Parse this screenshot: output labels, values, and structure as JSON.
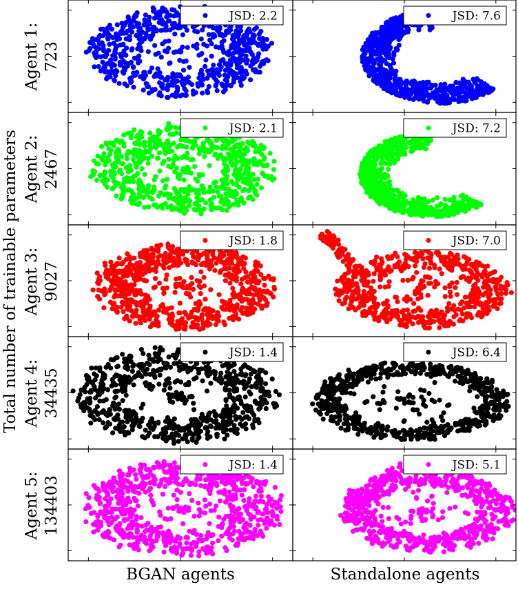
{
  "figure": {
    "y_title": "Total number of trainable parameters",
    "col_titles": [
      "BGAN agents",
      "Standalone agents"
    ]
  },
  "rows": [
    {
      "label_line1": "Agent 1:",
      "label_line2": "723",
      "color": "#0000ff"
    },
    {
      "label_line1": "Agent 2:",
      "label_line2": "2467",
      "color": "#00ff00"
    },
    {
      "label_line1": "Agent 3:",
      "label_line2": "9027",
      "color": "#ff0000"
    },
    {
      "label_line1": "Agent 4:",
      "label_line2": "34435",
      "color": "#000000"
    },
    {
      "label_line1": "Agent 5:",
      "label_line2": "134403",
      "color": "#ff00ff"
    }
  ],
  "chart_data": [
    {
      "type": "scatter",
      "agent": "Agent 1: 723",
      "column": "BGAN agents",
      "legend": "JSD: 2.2",
      "jsd": 2.2,
      "color": "#0000ff",
      "shape": "filled-ring",
      "point_count": 1300,
      "hole_ratio": 0.48,
      "grid": false,
      "legend_position": "top-right"
    },
    {
      "type": "scatter",
      "agent": "Agent 1: 723",
      "column": "Standalone agents",
      "legend": "JSD: 7.6",
      "jsd": 7.6,
      "color": "#0000ff",
      "shape": "crescent",
      "point_count": 1300,
      "grid": false,
      "legend_position": "top-right"
    },
    {
      "type": "scatter",
      "agent": "Agent 2: 2467",
      "column": "BGAN agents",
      "legend": "JSD: 2.1",
      "jsd": 2.1,
      "color": "#00ff00",
      "shape": "filled-ring",
      "point_count": 1300,
      "hole_ratio": 0.45,
      "grid": false,
      "legend_position": "top-right"
    },
    {
      "type": "scatter",
      "agent": "Agent 2: 2467",
      "column": "Standalone agents",
      "legend": "JSD: 7.2",
      "jsd": 7.2,
      "color": "#00ff00",
      "shape": "crescent",
      "point_count": 1200,
      "grid": false,
      "legend_position": "top-right"
    },
    {
      "type": "scatter",
      "agent": "Agent 3: 9027",
      "column": "BGAN agents",
      "legend": "JSD: 1.8",
      "jsd": 1.8,
      "color": "#ff0000",
      "shape": "ring",
      "point_count": 1400,
      "hole_ratio": 0.52,
      "grid": false,
      "legend_position": "top-right"
    },
    {
      "type": "scatter",
      "agent": "Agent 3: 9027",
      "column": "Standalone agents",
      "legend": "JSD: 7.0",
      "jsd": 7.0,
      "color": "#ff0000",
      "shape": "ring-with-tail",
      "point_count": 1300,
      "hole_ratio": 0.58,
      "grid": false,
      "legend_position": "top-right"
    },
    {
      "type": "scatter",
      "agent": "Agent 4: 34435",
      "column": "BGAN agents",
      "legend": "JSD: 1.4",
      "jsd": 1.4,
      "color": "#000000",
      "shape": "ring",
      "point_count": 1400,
      "hole_ratio": 0.5,
      "grid": false,
      "legend_position": "top-right"
    },
    {
      "type": "scatter",
      "agent": "Agent 4: 34435",
      "column": "Standalone agents",
      "legend": "JSD: 6.4",
      "jsd": 6.4,
      "color": "#000000",
      "shape": "thin-ring",
      "point_count": 1300,
      "hole_ratio": 0.72,
      "grid": false,
      "legend_position": "top-right"
    },
    {
      "type": "scatter",
      "agent": "Agent 5: 134403",
      "column": "BGAN agents",
      "legend": "JSD: 1.4",
      "jsd": 1.4,
      "color": "#ff00ff",
      "shape": "ring",
      "point_count": 1400,
      "hole_ratio": 0.5,
      "grid": false,
      "legend_position": "top-right"
    },
    {
      "type": "scatter",
      "agent": "Agent 5: 134403",
      "column": "Standalone agents",
      "legend": "JSD: 5.1",
      "jsd": 5.1,
      "color": "#ff00ff",
      "shape": "ring-with-tail",
      "point_count": 1300,
      "hole_ratio": 0.6,
      "grid": false,
      "legend_position": "top-right"
    }
  ]
}
